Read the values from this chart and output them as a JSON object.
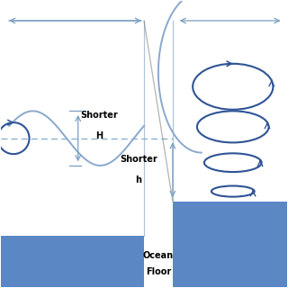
{
  "bg_color": "#ffffff",
  "ocean_color": "#5b87c5",
  "wave_color": "#8aa8cc",
  "arrow_color": "#7a9fc0",
  "spiral_color": "#2f5496",
  "dashed_color": "#8ab0d0",
  "text_color": "#000000",
  "shorter_H_label": "Shorter\nH",
  "shorter_h_label": "Shorter\nh",
  "ocean_floor_label": "Ocean\nFloor"
}
